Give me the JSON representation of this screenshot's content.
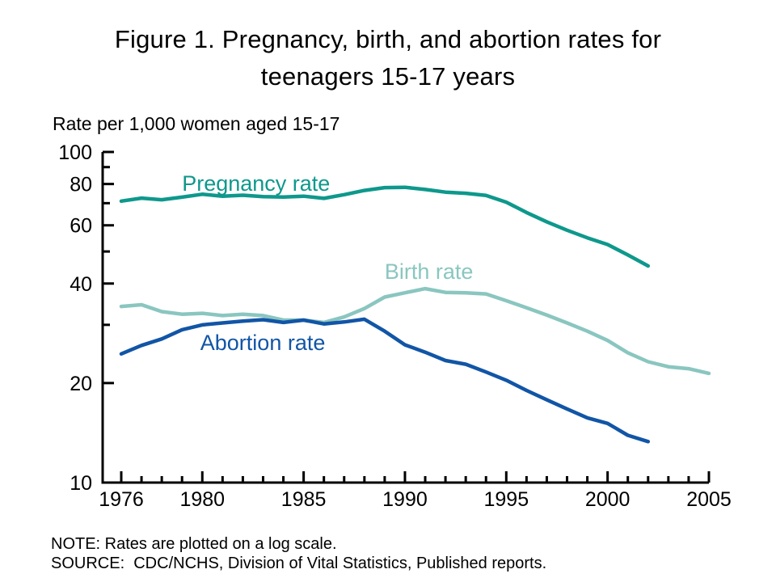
{
  "title": "Figure 1. Pregnancy, birth, and abortion rates for\nteenagers 15-17 years",
  "ylabel": "Rate per 1,000 women aged 15-17",
  "note": "NOTE: Rates are plotted on a log scale.",
  "source": "SOURCE:  CDC/NCHS, Division of Vital Statistics, Published reports.",
  "chart_data": {
    "type": "line",
    "scale": "log",
    "x_range": [
      1976,
      2005
    ],
    "ylim": [
      10,
      100
    ],
    "grid": false,
    "legend_position": "inline-labels",
    "yticks_major": [
      100,
      80,
      60,
      40,
      20,
      10
    ],
    "yticks_minor": [
      90,
      70,
      50,
      30
    ],
    "xticks_labeled": [
      1976,
      1980,
      1985,
      1990,
      1995,
      2000,
      2005
    ],
    "xticks_minor_every": 1,
    "series": [
      {
        "name": "Pregnancy rate",
        "color": "#0e988c",
        "label_anchor": {
          "year": 1979.0,
          "value": 76.3
        },
        "years": [
          1976,
          1977,
          1978,
          1979,
          1980,
          1981,
          1982,
          1983,
          1984,
          1985,
          1986,
          1987,
          1988,
          1989,
          1990,
          1991,
          1992,
          1993,
          1994,
          1995,
          1996,
          1997,
          1998,
          1999,
          2000,
          2001,
          2002
        ],
        "values": [
          71.0,
          72.5,
          71.7,
          73.0,
          74.5,
          73.5,
          74.0,
          73.3,
          73.1,
          73.5,
          72.4,
          74.3,
          76.5,
          78.0,
          78.2,
          77.0,
          75.6,
          75.0,
          73.9,
          70.5,
          65.6,
          61.5,
          58.0,
          55.0,
          52.5,
          48.8,
          45.2
        ]
      },
      {
        "name": "Birth rate",
        "color": "#8ac6c0",
        "label_anchor": {
          "year": 1989.0,
          "value": 41.3
        },
        "years": [
          1976,
          1977,
          1978,
          1979,
          1980,
          1981,
          1982,
          1983,
          1984,
          1985,
          1986,
          1987,
          1988,
          1989,
          1990,
          1991,
          1992,
          1993,
          1994,
          1995,
          1996,
          1997,
          1998,
          1999,
          2000,
          2001,
          2002,
          2003,
          2004,
          2005
        ],
        "values": [
          34.1,
          34.5,
          32.9,
          32.3,
          32.5,
          32.0,
          32.3,
          32.0,
          31.0,
          31.0,
          30.5,
          31.7,
          33.6,
          36.4,
          37.5,
          38.6,
          37.6,
          37.5,
          37.2,
          35.5,
          33.8,
          32.1,
          30.4,
          28.7,
          26.9,
          24.7,
          23.2,
          22.4,
          22.1,
          21.4
        ]
      },
      {
        "name": "Abortion rate",
        "color": "#1155a6",
        "label_anchor": {
          "year": 1979.9,
          "value": 25.2
        },
        "years": [
          1976,
          1977,
          1978,
          1979,
          1980,
          1981,
          1982,
          1983,
          1984,
          1985,
          1986,
          1987,
          1988,
          1989,
          1990,
          1991,
          1992,
          1993,
          1994,
          1995,
          1996,
          1997,
          1998,
          1999,
          2000,
          2001,
          2002
        ],
        "values": [
          24.5,
          26.0,
          27.2,
          29.0,
          30.0,
          30.4,
          30.8,
          31.1,
          30.5,
          31.0,
          30.2,
          30.6,
          31.2,
          28.7,
          26.1,
          24.8,
          23.4,
          22.8,
          21.6,
          20.4,
          19.0,
          17.8,
          16.7,
          15.7,
          15.1,
          13.9,
          13.3
        ]
      }
    ],
    "axis_color": "#000000",
    "text_color": "#000000"
  }
}
